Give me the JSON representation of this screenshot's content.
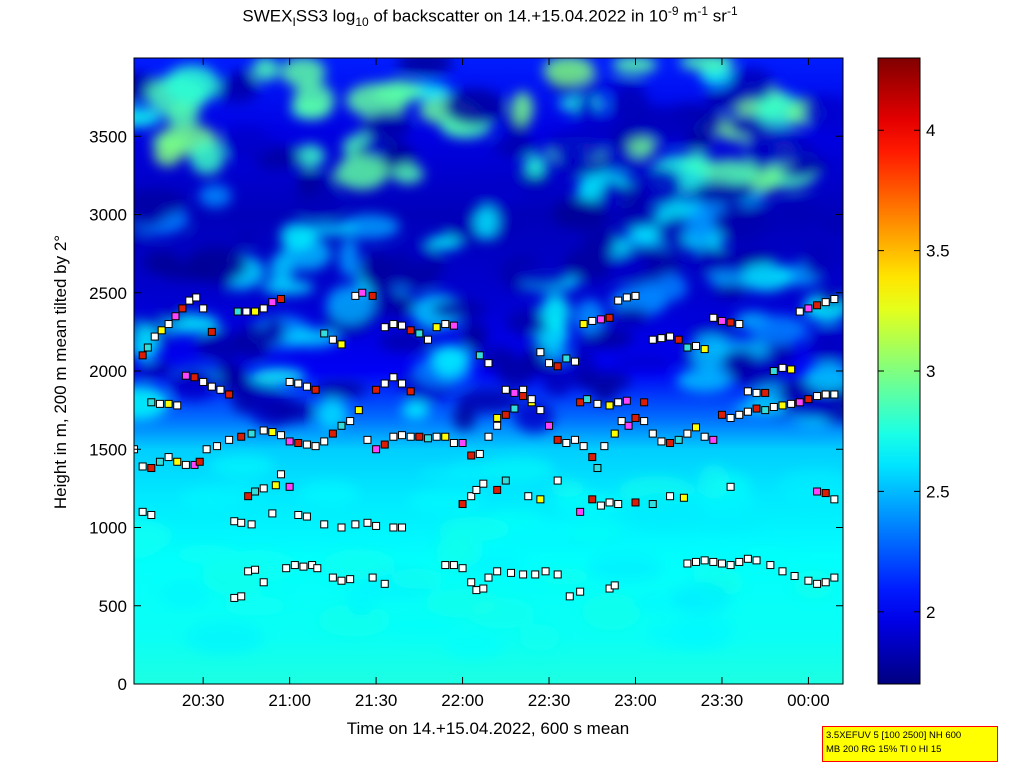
{
  "title_parts": {
    "pre": "SWEX",
    "sub1": "I",
    "mid1": "SS3 log",
    "sub2": "10",
    "mid2": " of backscatter on 14.+15.04.2022 in 10",
    "sup1": "-9",
    "mid3": " m",
    "sup2": "-1",
    "mid4": " sr",
    "sup3": "-1"
  },
  "info_box": {
    "line1": "3.5XEFUV 5 [100 2500] NH 600",
    "line2": "MB 200 RG 15% TI 0 HI 15"
  },
  "colors": {
    "colormap": "jet",
    "marker_white": "#ffffff",
    "marker_red": "#dd1c05",
    "marker_yellow": "#ffff00",
    "marker_magenta": "#ff44ff",
    "marker_cyan": "#33dddd",
    "marker_edge": "#000000"
  },
  "chart_data": {
    "type": "heatmap",
    "title": "SWEXISS3 log10 of backscatter on 14.+15.04.2022 in 10-9 m-1 sr-1",
    "xlabel": "Time on 14.+15.04.2022, 600 s mean",
    "ylabel": "Height in m, 200 m mean tilted by 2°",
    "xlim": [
      20.1,
      24.2
    ],
    "ylim": [
      0,
      4000
    ],
    "x_ticks": [
      20.5,
      21.0,
      21.5,
      22.0,
      22.5,
      23.0,
      23.5,
      24.0
    ],
    "x_tick_labels": [
      "20:30",
      "21:00",
      "21:30",
      "22:00",
      "22:30",
      "23:00",
      "23:30",
      "00:00"
    ],
    "y_ticks": [
      0,
      500,
      1000,
      1500,
      2000,
      2500,
      3000,
      3500
    ],
    "y_tick_labels": [
      "0",
      "500",
      "1000",
      "1500",
      "2000",
      "2500",
      "3000",
      "3500"
    ],
    "colorbar": {
      "clim": [
        1.7,
        4.3
      ],
      "ticks": [
        2,
        2.5,
        3,
        3.5,
        4
      ],
      "tick_labels": [
        "2",
        "2.5",
        "3",
        "3.5",
        "4"
      ],
      "colormap": "jet"
    },
    "background_profile": [
      {
        "height": 0,
        "value": 2.75
      },
      {
        "height": 300,
        "value": 2.7
      },
      {
        "height": 800,
        "value": 2.68
      },
      {
        "height": 1200,
        "value": 2.62
      },
      {
        "height": 1500,
        "value": 2.55
      },
      {
        "height": 1700,
        "value": 2.3
      },
      {
        "height": 2000,
        "value": 2.0
      },
      {
        "height": 2500,
        "value": 1.9
      },
      {
        "height": 3000,
        "value": 1.85
      },
      {
        "height": 3500,
        "value": 1.95
      },
      {
        "height": 4000,
        "value": 2.1
      }
    ],
    "layers": [
      {
        "name": "layer-650",
        "points": [
          [
            20.68,
            550
          ],
          [
            20.72,
            560
          ],
          [
            20.76,
            720
          ],
          [
            20.8,
            730
          ],
          [
            20.85,
            650
          ],
          [
            20.98,
            740
          ],
          [
            21.03,
            760
          ],
          [
            21.08,
            750
          ],
          [
            21.13,
            760
          ],
          [
            21.16,
            740
          ],
          [
            21.25,
            680
          ],
          [
            21.3,
            660
          ],
          [
            21.35,
            670
          ],
          [
            21.48,
            680
          ],
          [
            21.55,
            640
          ],
          [
            21.9,
            760
          ],
          [
            21.95,
            760
          ],
          [
            22.0,
            740
          ],
          [
            22.05,
            650
          ],
          [
            22.08,
            600
          ],
          [
            22.12,
            610
          ],
          [
            22.15,
            680
          ],
          [
            22.2,
            720
          ],
          [
            22.28,
            710
          ],
          [
            22.35,
            700
          ],
          [
            22.42,
            700
          ],
          [
            22.48,
            720
          ],
          [
            22.55,
            700
          ],
          [
            22.62,
            560
          ],
          [
            22.68,
            590
          ],
          [
            22.85,
            610
          ],
          [
            22.88,
            630
          ],
          [
            23.3,
            770
          ],
          [
            23.35,
            780
          ],
          [
            23.4,
            790
          ],
          [
            23.45,
            780
          ],
          [
            23.5,
            770
          ],
          [
            23.55,
            760
          ],
          [
            23.6,
            780
          ],
          [
            23.65,
            800
          ],
          [
            23.7,
            790
          ],
          [
            23.78,
            760
          ],
          [
            23.85,
            720
          ],
          [
            23.92,
            690
          ],
          [
            24.0,
            660
          ],
          [
            24.05,
            640
          ],
          [
            24.1,
            650
          ],
          [
            24.15,
            680
          ]
        ]
      },
      {
        "name": "layer-1000",
        "points": [
          [
            20.15,
            1100
          ],
          [
            20.2,
            1080
          ],
          [
            20.68,
            1040
          ],
          [
            20.72,
            1030
          ],
          [
            20.78,
            1020
          ],
          [
            20.9,
            1090
          ],
          [
            21.05,
            1080
          ],
          [
            21.1,
            1070
          ],
          [
            21.2,
            1020
          ],
          [
            21.3,
            1000
          ],
          [
            21.38,
            1020
          ],
          [
            21.45,
            1030
          ],
          [
            21.5,
            1010
          ],
          [
            21.6,
            1000
          ],
          [
            21.65,
            1000
          ]
        ]
      },
      {
        "name": "layer-1250",
        "points": [
          [
            20.76,
            1200
          ],
          [
            20.8,
            1230
          ],
          [
            20.85,
            1250
          ],
          [
            20.92,
            1270
          ],
          [
            20.95,
            1340
          ],
          [
            21.0,
            1260
          ],
          [
            22.0,
            1150
          ],
          [
            22.05,
            1200
          ],
          [
            22.08,
            1240
          ],
          [
            22.12,
            1280
          ],
          [
            22.2,
            1240
          ],
          [
            22.25,
            1300
          ],
          [
            22.38,
            1200
          ],
          [
            22.45,
            1180
          ],
          [
            22.55,
            1300
          ],
          [
            22.68,
            1100
          ],
          [
            22.75,
            1180
          ],
          [
            22.8,
            1140
          ],
          [
            22.85,
            1160
          ],
          [
            22.9,
            1150
          ],
          [
            23.0,
            1160
          ],
          [
            23.1,
            1150
          ],
          [
            23.2,
            1200
          ],
          [
            23.28,
            1190
          ],
          [
            23.55,
            1260
          ],
          [
            24.05,
            1230
          ],
          [
            24.1,
            1220
          ],
          [
            24.15,
            1180
          ]
        ]
      },
      {
        "name": "layer-1500",
        "points": [
          [
            20.1,
            1500
          ],
          [
            20.15,
            1390
          ],
          [
            20.2,
            1380
          ],
          [
            20.25,
            1420
          ],
          [
            20.3,
            1450
          ],
          [
            20.35,
            1420
          ],
          [
            20.4,
            1400
          ],
          [
            20.45,
            1400
          ],
          [
            20.48,
            1420
          ],
          [
            20.52,
            1500
          ],
          [
            20.58,
            1520
          ],
          [
            20.65,
            1560
          ],
          [
            20.72,
            1580
          ],
          [
            20.78,
            1600
          ],
          [
            20.85,
            1620
          ],
          [
            20.9,
            1610
          ],
          [
            20.95,
            1590
          ],
          [
            21.0,
            1550
          ],
          [
            21.05,
            1540
          ],
          [
            21.1,
            1530
          ],
          [
            21.15,
            1520
          ],
          [
            21.2,
            1550
          ],
          [
            21.25,
            1600
          ],
          [
            21.3,
            1650
          ],
          [
            21.35,
            1680
          ],
          [
            21.4,
            1750
          ],
          [
            21.45,
            1560
          ],
          [
            21.5,
            1500
          ],
          [
            21.55,
            1530
          ],
          [
            21.6,
            1580
          ],
          [
            21.65,
            1590
          ],
          [
            21.7,
            1580
          ],
          [
            21.75,
            1580
          ],
          [
            21.8,
            1570
          ],
          [
            21.85,
            1580
          ],
          [
            21.9,
            1580
          ],
          [
            21.95,
            1540
          ],
          [
            22.0,
            1540
          ],
          [
            22.05,
            1460
          ],
          [
            22.1,
            1470
          ],
          [
            22.15,
            1580
          ],
          [
            22.2,
            1650
          ],
          [
            22.25,
            1720
          ],
          [
            22.3,
            1760
          ],
          [
            22.35,
            1880
          ],
          [
            22.4,
            1800
          ],
          [
            22.45,
            1750
          ],
          [
            22.5,
            1650
          ],
          [
            22.55,
            1560
          ],
          [
            22.6,
            1540
          ],
          [
            22.65,
            1560
          ],
          [
            22.7,
            1520
          ],
          [
            22.75,
            1450
          ],
          [
            22.78,
            1380
          ],
          [
            22.82,
            1520
          ],
          [
            22.88,
            1600
          ],
          [
            22.92,
            1680
          ],
          [
            22.96,
            1650
          ],
          [
            23.0,
            1700
          ],
          [
            23.05,
            1680
          ],
          [
            23.1,
            1600
          ],
          [
            23.15,
            1550
          ],
          [
            23.2,
            1540
          ],
          [
            23.25,
            1560
          ],
          [
            23.3,
            1600
          ],
          [
            23.35,
            1640
          ],
          [
            23.4,
            1580
          ],
          [
            23.45,
            1560
          ],
          [
            23.5,
            1720
          ],
          [
            23.55,
            1700
          ],
          [
            23.6,
            1720
          ],
          [
            23.65,
            1740
          ],
          [
            23.7,
            1760
          ],
          [
            23.75,
            1750
          ],
          [
            23.8,
            1770
          ],
          [
            23.85,
            1780
          ],
          [
            23.9,
            1790
          ],
          [
            23.95,
            1800
          ],
          [
            24.0,
            1820
          ],
          [
            24.05,
            1840
          ],
          [
            24.1,
            1850
          ],
          [
            24.15,
            1850
          ]
        ]
      },
      {
        "name": "layer-1850",
        "points": [
          [
            20.15,
            2100
          ],
          [
            20.18,
            2150
          ],
          [
            20.22,
            2220
          ],
          [
            20.26,
            2260
          ],
          [
            20.3,
            2300
          ],
          [
            20.34,
            2350
          ],
          [
            20.38,
            2400
          ],
          [
            20.42,
            2450
          ],
          [
            20.46,
            2470
          ],
          [
            20.5,
            2400
          ],
          [
            20.55,
            2250
          ],
          [
            20.2,
            1800
          ],
          [
            20.25,
            1790
          ],
          [
            20.3,
            1790
          ],
          [
            20.35,
            1780
          ],
          [
            20.4,
            1970
          ],
          [
            20.45,
            1960
          ],
          [
            20.5,
            1930
          ],
          [
            20.55,
            1900
          ],
          [
            20.6,
            1880
          ],
          [
            20.65,
            1850
          ],
          [
            20.7,
            2380
          ],
          [
            20.75,
            2380
          ],
          [
            20.8,
            2380
          ],
          [
            20.85,
            2400
          ],
          [
            20.9,
            2440
          ],
          [
            20.95,
            2460
          ],
          [
            21.0,
            1930
          ],
          [
            21.05,
            1920
          ],
          [
            21.1,
            1900
          ],
          [
            21.15,
            1880
          ],
          [
            21.2,
            2240
          ],
          [
            21.25,
            2200
          ],
          [
            21.3,
            2170
          ],
          [
            21.38,
            2480
          ],
          [
            21.42,
            2500
          ],
          [
            21.48,
            2480
          ],
          [
            21.55,
            2280
          ],
          [
            21.6,
            2300
          ],
          [
            21.65,
            2290
          ],
          [
            21.7,
            2260
          ],
          [
            21.75,
            2240
          ],
          [
            21.8,
            2200
          ],
          [
            21.85,
            2280
          ],
          [
            21.9,
            2300
          ],
          [
            21.95,
            2290
          ],
          [
            21.5,
            1880
          ],
          [
            21.55,
            1920
          ],
          [
            21.6,
            1960
          ],
          [
            21.65,
            1920
          ],
          [
            21.7,
            1870
          ],
          [
            22.1,
            2100
          ],
          [
            22.15,
            2050
          ],
          [
            22.2,
            1700
          ],
          [
            22.25,
            1880
          ],
          [
            22.3,
            1860
          ],
          [
            22.35,
            1840
          ],
          [
            22.4,
            1820
          ],
          [
            22.45,
            2120
          ],
          [
            22.5,
            2050
          ],
          [
            22.55,
            2030
          ],
          [
            22.6,
            2080
          ],
          [
            22.65,
            2060
          ],
          [
            22.7,
            2300
          ],
          [
            22.75,
            2320
          ],
          [
            22.8,
            2330
          ],
          [
            22.85,
            2340
          ],
          [
            22.9,
            2450
          ],
          [
            22.95,
            2470
          ],
          [
            23.0,
            2480
          ],
          [
            22.68,
            1800
          ],
          [
            22.72,
            1820
          ],
          [
            22.78,
            1790
          ],
          [
            22.85,
            1780
          ],
          [
            22.9,
            1800
          ],
          [
            22.95,
            1810
          ],
          [
            23.05,
            1800
          ],
          [
            23.1,
            2200
          ],
          [
            23.15,
            2210
          ],
          [
            23.2,
            2220
          ],
          [
            23.25,
            2200
          ],
          [
            23.3,
            2150
          ],
          [
            23.35,
            2160
          ],
          [
            23.4,
            2140
          ],
          [
            23.45,
            2340
          ],
          [
            23.5,
            2320
          ],
          [
            23.55,
            2310
          ],
          [
            23.6,
            2300
          ],
          [
            23.65,
            1870
          ],
          [
            23.7,
            1860
          ],
          [
            23.75,
            1860
          ],
          [
            23.8,
            2000
          ],
          [
            23.85,
            2020
          ],
          [
            23.9,
            2010
          ],
          [
            23.95,
            2380
          ],
          [
            24.0,
            2400
          ],
          [
            24.05,
            2420
          ],
          [
            24.1,
            2440
          ],
          [
            24.15,
            2460
          ]
        ]
      }
    ]
  }
}
